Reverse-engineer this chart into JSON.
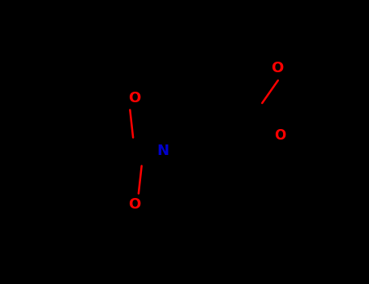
{
  "bg_color": "#000000",
  "bond_color": "#000000",
  "oxygen_color": "#ff0000",
  "nitrogen_color": "#0000cc",
  "lw": 2.2,
  "lw_inner": 1.8,
  "figsize": [
    4.55,
    3.5
  ],
  "dpi": 100,
  "xlim": [
    -3.2,
    2.8
  ],
  "ylim": [
    -2.2,
    2.2
  ]
}
